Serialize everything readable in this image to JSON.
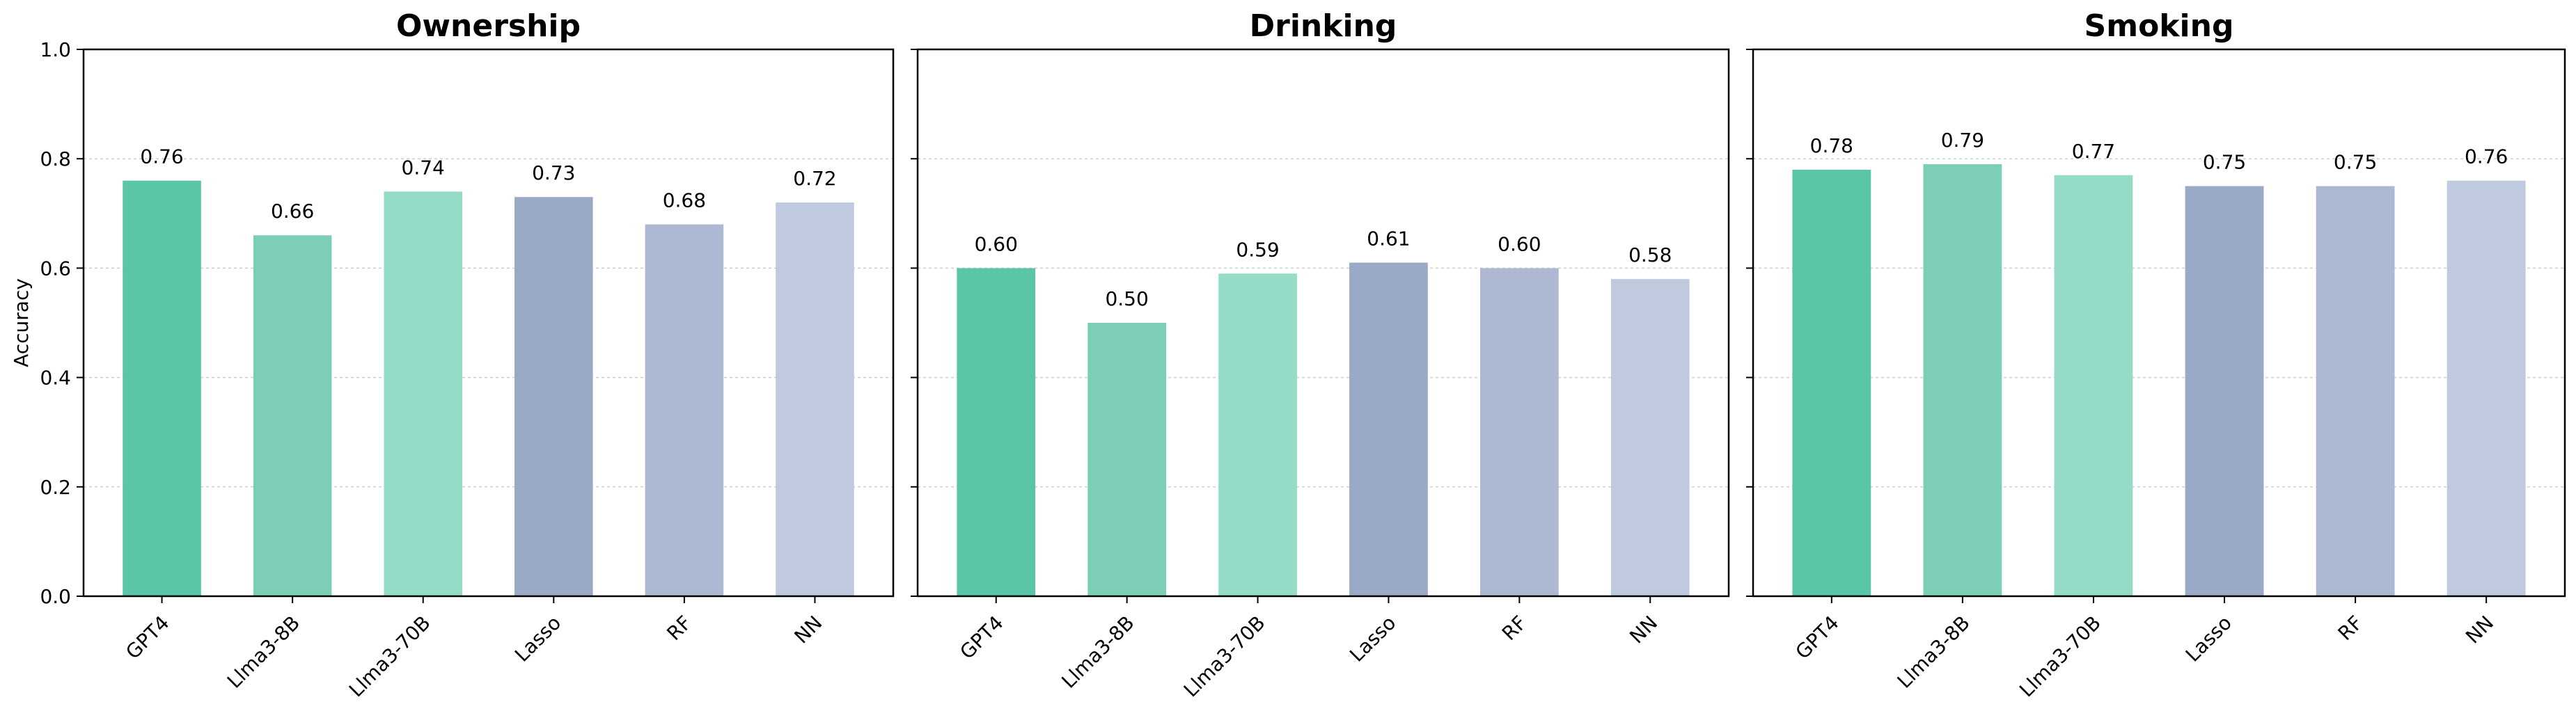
{
  "chart_data": [
    {
      "type": "bar",
      "title": "Ownership",
      "ylabel": "Accuracy",
      "categories": [
        "GPT4",
        "Llma3-8B",
        "Llma3-70B",
        "Lasso",
        "RF",
        "NN"
      ],
      "values": [
        0.76,
        0.66,
        0.74,
        0.73,
        0.68,
        0.72
      ],
      "data_labels": [
        "0.76",
        "0.66",
        "0.74",
        "0.73",
        "0.68",
        "0.72"
      ],
      "ylim": [
        0.0,
        1.0
      ],
      "yticks": [
        "0.0",
        "0.2",
        "0.4",
        "0.6",
        "0.8",
        "1.0"
      ],
      "grid": "horizontal dotted"
    },
    {
      "type": "bar",
      "title": "Drinking",
      "categories": [
        "GPT4",
        "Llma3-8B",
        "Llma3-70B",
        "Lasso",
        "RF",
        "NN"
      ],
      "values": [
        0.6,
        0.5,
        0.59,
        0.61,
        0.6,
        0.58
      ],
      "data_labels": [
        "0.60",
        "0.50",
        "0.59",
        "0.61",
        "0.60",
        "0.58"
      ],
      "ylim": [
        0.0,
        1.0
      ],
      "grid": "horizontal dotted"
    },
    {
      "type": "bar",
      "title": "Smoking",
      "categories": [
        "GPT4",
        "Llma3-8B",
        "Llma3-70B",
        "Lasso",
        "RF",
        "NN"
      ],
      "values": [
        0.78,
        0.79,
        0.77,
        0.75,
        0.75,
        0.76
      ],
      "data_labels": [
        "0.78",
        "0.79",
        "0.77",
        "0.75",
        "0.75",
        "0.76"
      ],
      "ylim": [
        0.0,
        1.0
      ],
      "grid": "horizontal dotted"
    }
  ],
  "colors": [
    "#5bc5a7",
    "#7ccfb6",
    "#95dcc8",
    "#9aa9c5",
    "#adb9d2",
    "#bfcadf"
  ]
}
